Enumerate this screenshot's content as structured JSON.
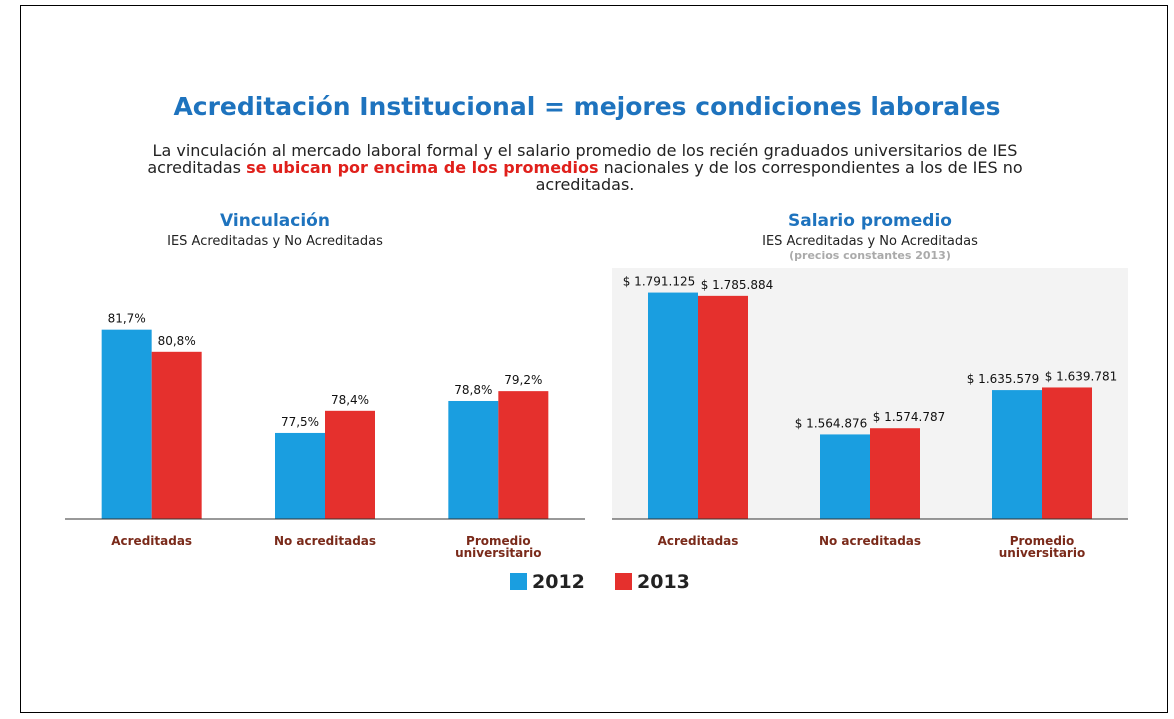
{
  "header": {
    "title": "Acreditación Institucional = mejores condiciones laborales",
    "text": [
      "La vinculación al mercado laboral formal y el salario promedio de los recién graduados universitarios de IES acreditadas",
      "se ubican por encima de los promedios",
      "nacionales y de los correspondientes a los de IES no acreditadas."
    ]
  },
  "legend": [
    {
      "name": "2012",
      "color": "#1a9ee0"
    },
    {
      "name": "2013",
      "color": "#e5302d"
    }
  ],
  "chart_data": [
    {
      "type": "bar",
      "title": "Vinculación",
      "subtitle": "IES Acreditadas y No Acreditadas",
      "categories": [
        "Acreditadas",
        "No acreditadas",
        "Promedio universitario"
      ],
      "series": [
        {
          "values": [
            81.7,
            77.5,
            78.8
          ],
          "value_labels": [
            "81,7%",
            "77,5%",
            "78,8%"
          ]
        },
        {
          "values": [
            80.8,
            78.4,
            79.2
          ],
          "value_labels": [
            "80,8%",
            "78,4%",
            "79,2%"
          ]
        }
      ],
      "ylim": [
        74,
        82.5
      ]
    },
    {
      "type": "bar",
      "title": "Salario promedio",
      "subtitle": "IES Acreditadas y No Acreditadas",
      "note": "(precios constantes 2013)",
      "categories": [
        "Acreditadas",
        "No acreditadas",
        "Promedio universitario"
      ],
      "series": [
        {
          "values": [
            1791125,
            1564876,
            1635579
          ],
          "value_labels": [
            "$ 1.791.125",
            "$ 1.564.876",
            "$ 1.635.579"
          ]
        },
        {
          "values": [
            1785884,
            1574787,
            1639781
          ],
          "value_labels": [
            "$ 1.785.884",
            "$ 1.574.787",
            "$ 1.639.781"
          ]
        }
      ],
      "ylim": [
        1430000,
        1800000
      ]
    }
  ]
}
